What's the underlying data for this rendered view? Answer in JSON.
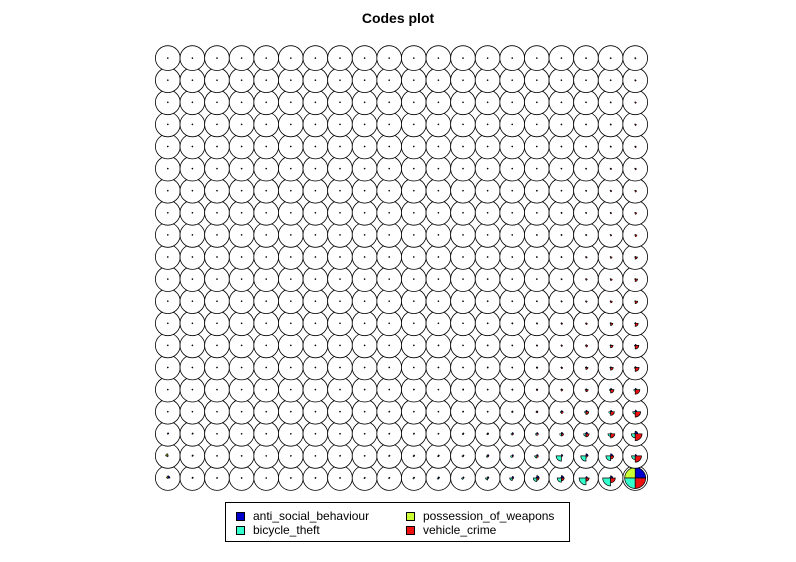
{
  "chart_data": {
    "type": "som-codes",
    "title": "Codes plot",
    "grid": {
      "cols": 20,
      "rows": 20,
      "topology": "hexagonal"
    },
    "legend_placement": "bottom",
    "series": [
      {
        "name": "anti_social_behaviour",
        "color": "#0000cc"
      },
      {
        "name": "possession_of_weapons",
        "color": "#ccff33"
      },
      {
        "name": "bicycle_theft",
        "color": "#33ffcc"
      },
      {
        "name": "vehicle_crime",
        "color": "#ee1111"
      }
    ],
    "notable_units": [
      {
        "row": 0,
        "col": 19,
        "values": [
          1.0,
          1.0,
          1.0,
          1.0
        ]
      },
      {
        "row": 0,
        "col": 18,
        "values": [
          0.2,
          0.1,
          0.75,
          0.45
        ]
      },
      {
        "row": 0,
        "col": 17,
        "values": [
          0.15,
          0.05,
          0.65,
          0.3
        ]
      },
      {
        "row": 1,
        "col": 19,
        "values": [
          0.15,
          0.0,
          0.35,
          0.6
        ]
      },
      {
        "row": 1,
        "col": 18,
        "values": [
          0.2,
          0.0,
          0.45,
          0.3
        ]
      },
      {
        "row": 1,
        "col": 17,
        "values": [
          0.2,
          0.0,
          0.5,
          0.15
        ]
      },
      {
        "row": 1,
        "col": 16,
        "values": [
          0.15,
          0.0,
          0.5,
          0.1
        ]
      },
      {
        "row": 2,
        "col": 18,
        "values": [
          0.1,
          0.0,
          0.25,
          0.4
        ]
      },
      {
        "row": 0,
        "col": 0,
        "values": [
          0.2,
          0.15,
          0.05,
          0.05
        ]
      },
      {
        "row": 1,
        "col": 0,
        "values": [
          0.05,
          0.2,
          0.1,
          0.05
        ]
      }
    ]
  }
}
